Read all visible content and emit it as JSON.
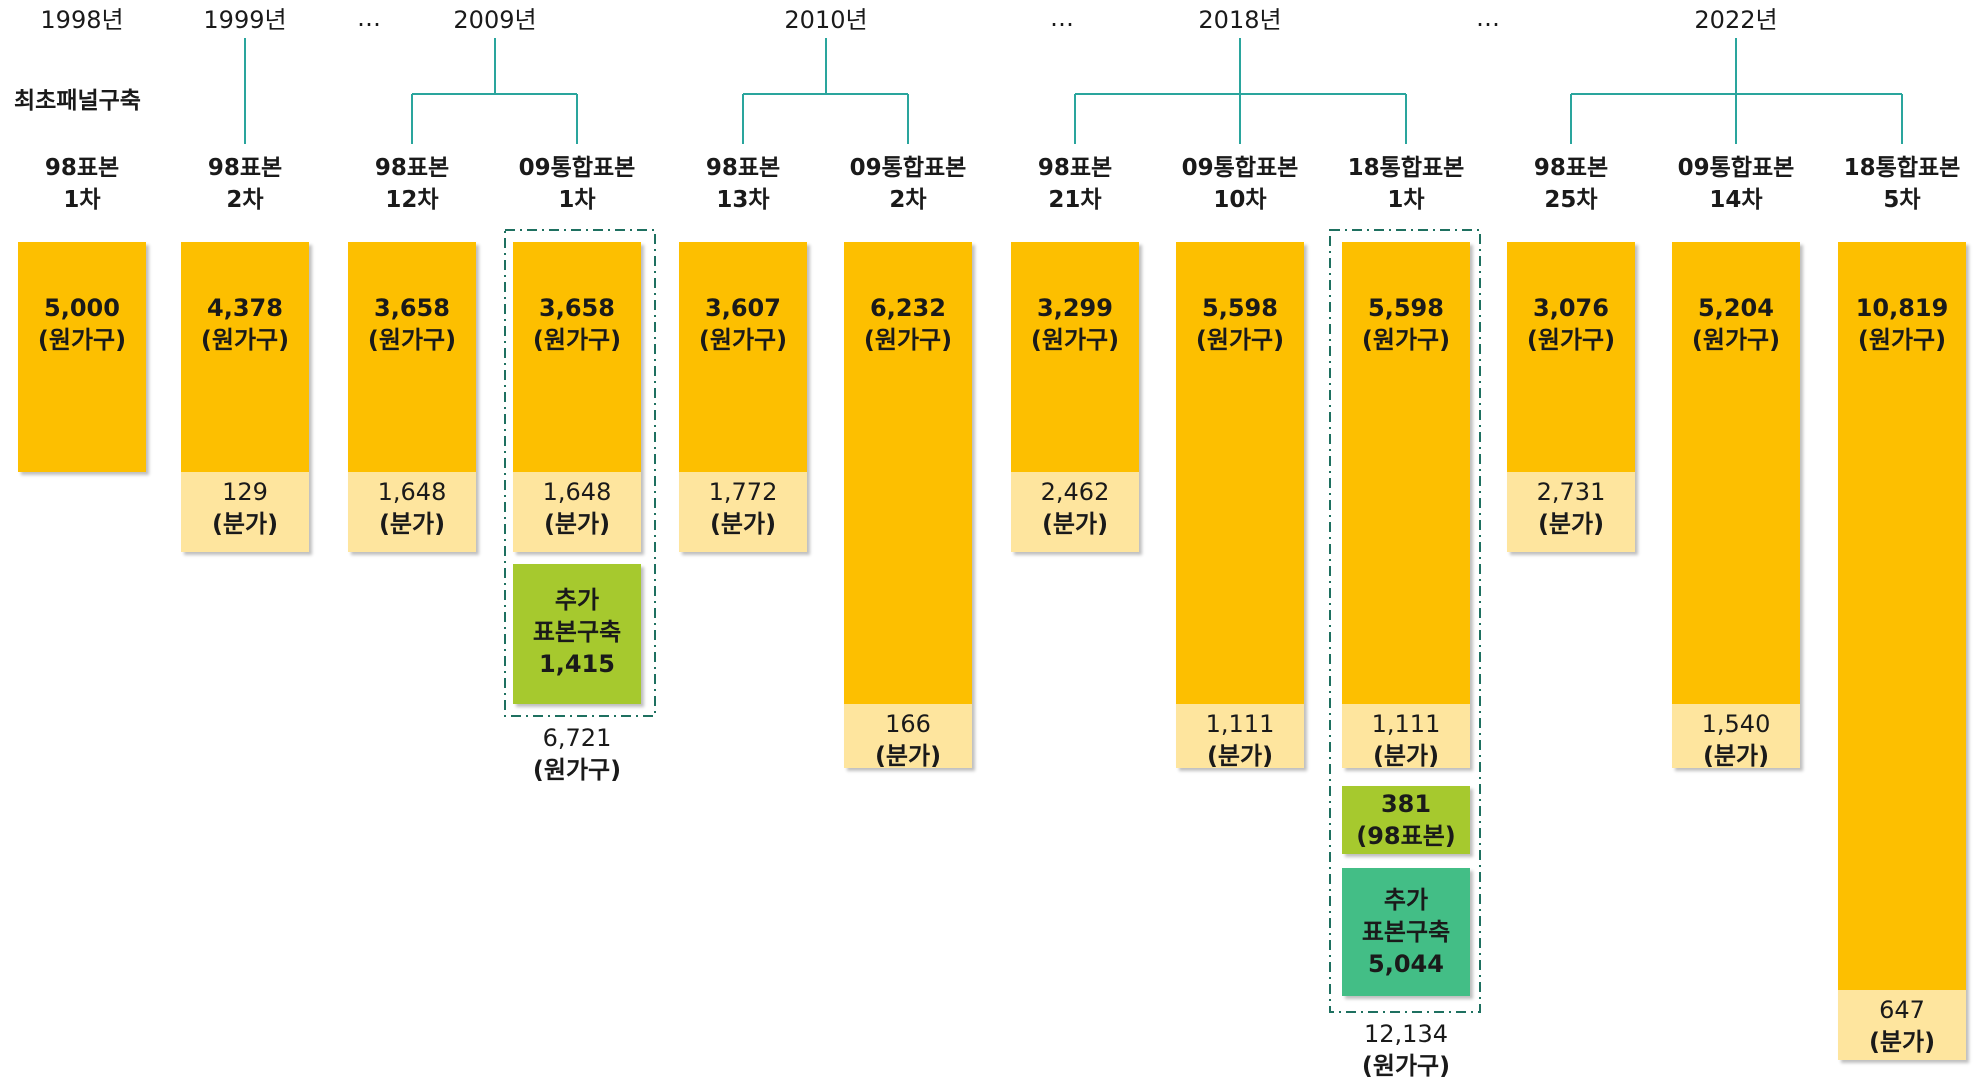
{
  "years": [
    {
      "label": "1998년",
      "x": 82
    },
    {
      "label": "1999년",
      "x": 245
    },
    {
      "label": "2009년",
      "x": 495
    },
    {
      "label": "2010년",
      "x": 826
    },
    {
      "label": "2018년",
      "x": 1240
    },
    {
      "label": "2022년",
      "x": 1736
    }
  ],
  "ellipsis": "…",
  "side_label": "최초패널구축",
  "columns": [
    {
      "line1": "98표본",
      "line2": "1차",
      "main_value": "5,000",
      "main_unit": "(원가구)"
    },
    {
      "line1": "98표본",
      "line2": "2차",
      "main_value": "4,378",
      "main_unit": "(원가구)",
      "split_value": "129",
      "split_unit": "(분가)"
    },
    {
      "line1": "98표본",
      "line2": "12차",
      "main_value": "3,658",
      "main_unit": "(원가구)",
      "split_value": "1,648",
      "split_unit": "(분가)"
    },
    {
      "line1": "09통합표본",
      "line2": "1차",
      "main_value": "3,658",
      "main_unit": "(원가구)",
      "split_value": "1,648",
      "split_unit": "(분가)"
    },
    {
      "line1": "98표본",
      "line2": "13차",
      "main_value": "3,607",
      "main_unit": "(원가구)",
      "split_value": "1,772",
      "split_unit": "(분가)"
    },
    {
      "line1": "09통합표본",
      "line2": "2차",
      "main_value": "6,232",
      "main_unit": "(원가구)",
      "split_value": "166",
      "split_unit": "(분가)"
    },
    {
      "line1": "98표본",
      "line2": "21차",
      "main_value": "3,299",
      "main_unit": "(원가구)",
      "split_value": "2,462",
      "split_unit": "(분가)"
    },
    {
      "line1": "09통합표본",
      "line2": "10차",
      "main_value": "5,598",
      "main_unit": "(원가구)",
      "split_value": "1,111",
      "split_unit": "(분가)"
    },
    {
      "line1": "18통합표본",
      "line2": "1차",
      "main_value": "5,598",
      "main_unit": "(원가구)",
      "split_value": "1,111",
      "split_unit": "(분가)"
    },
    {
      "line1": "98표본",
      "line2": "25차",
      "main_value": "3,076",
      "main_unit": "(원가구)",
      "split_value": "2,731",
      "split_unit": "(분가)"
    },
    {
      "line1": "09통합표본",
      "line2": "14차",
      "main_value": "5,204",
      "main_unit": "(원가구)",
      "split_value": "1,540",
      "split_unit": "(분가)"
    },
    {
      "line1": "18통합표본",
      "line2": "5차",
      "main_value": "10,819",
      "main_unit": "(원가구)",
      "split_value": "647",
      "split_unit": "(분가)"
    }
  ],
  "extra_2009": {
    "line1": "추가",
    "line2": "표본구축",
    "value": "1,415"
  },
  "total_2009": {
    "value": "6,721",
    "unit": "(원가구)"
  },
  "extra_2018_98": {
    "value": "381",
    "unit": "(98표본)"
  },
  "extra_2018": {
    "line1": "추가",
    "line2": "표본구축",
    "value": "5,044"
  },
  "total_2018": {
    "value": "12,134",
    "unit": "(원가구)"
  },
  "colors": {
    "bar": "#fdbf00",
    "split": "#fee59e",
    "lime": "#a6c92e",
    "teal": "#43be86",
    "connector": "#2aa59d",
    "dash": "#1e7060"
  }
}
